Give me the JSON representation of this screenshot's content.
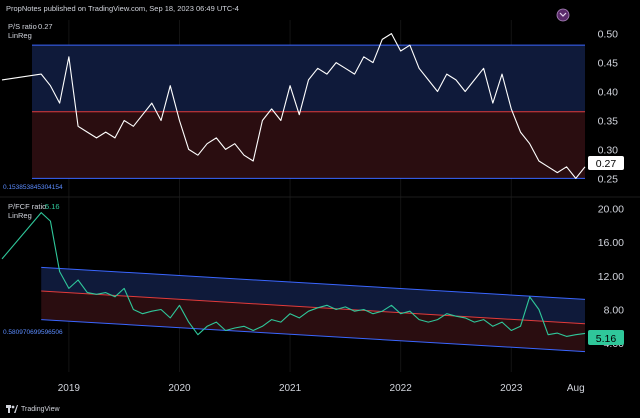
{
  "header": {
    "published": "PropNotes published on TradingView.com, Sep 18, 2023 06:49 UTC-4"
  },
  "footer": {
    "logo_text": "TradingView"
  },
  "colors": {
    "background": "#000000",
    "upper_band": "#0f1a3a",
    "lower_band": "#2a0d10",
    "band_edge_blue": "#3a66ff",
    "band_mid_red": "#e23b3b",
    "line": "#ffffff",
    "pfcf_line": "#2fc79a",
    "grid": "#141414"
  },
  "panes": {
    "ps": {
      "title": "P/S ratio",
      "value": "0.27",
      "indicator": "LinReg",
      "regression_label": "0.153853845304154",
      "last_value_badge": "0.27",
      "yticks": [
        "0.50",
        "0.45",
        "0.40",
        "0.35",
        "0.30",
        "0.25"
      ]
    },
    "pfcf": {
      "title": "P/FCF ratio",
      "value": "5.16",
      "indicator": "LinReg",
      "regression_label": "0.580970699596506",
      "last_value_badge": "5.16",
      "yticks": [
        "20.00",
        "16.00",
        "12.00",
        "8.00",
        "4.00"
      ]
    }
  },
  "xaxis": {
    "labels": [
      "2019",
      "2020",
      "2021",
      "2022",
      "2023",
      "Aug"
    ]
  },
  "chart_data": [
    {
      "type": "line",
      "title": "P/S ratio",
      "ylim": [
        0.23,
        0.52
      ],
      "x_range": [
        "2018-09",
        "2023-09"
      ],
      "regression_channel": {
        "upper": 0.48,
        "mid": 0.365,
        "lower": 0.25
      },
      "series": [
        {
          "name": "P/S ratio",
          "x": [
            "2018-09",
            "2018-10",
            "2018-11",
            "2018-12",
            "2019-01",
            "2019-02",
            "2019-03",
            "2019-04",
            "2019-05",
            "2019-06",
            "2019-07",
            "2019-08",
            "2019-09",
            "2019-10",
            "2019-11",
            "2019-12",
            "2020-01",
            "2020-02",
            "2020-03",
            "2020-04",
            "2020-05",
            "2020-06",
            "2020-07",
            "2020-08",
            "2020-09",
            "2020-10",
            "2020-11",
            "2020-12",
            "2021-01",
            "2021-02",
            "2021-03",
            "2021-04",
            "2021-05",
            "2021-06",
            "2021-07",
            "2021-08",
            "2021-09",
            "2021-10",
            "2021-11",
            "2021-12",
            "2022-01",
            "2022-02",
            "2022-03",
            "2022-04",
            "2022-05",
            "2022-06",
            "2022-07",
            "2022-08",
            "2022-09",
            "2022-10",
            "2022-11",
            "2022-12",
            "2023-01",
            "2023-02",
            "2023-03",
            "2023-04",
            "2023-05",
            "2023-06",
            "2023-07",
            "2023-08",
            "2023-09"
          ],
          "values": [
            0.42,
            0.43,
            0.41,
            0.38,
            0.46,
            0.34,
            0.33,
            0.32,
            0.33,
            0.32,
            0.35,
            0.34,
            0.36,
            0.38,
            0.35,
            0.41,
            0.35,
            0.3,
            0.29,
            0.31,
            0.32,
            0.3,
            0.31,
            0.29,
            0.28,
            0.35,
            0.37,
            0.35,
            0.41,
            0.36,
            0.42,
            0.44,
            0.43,
            0.45,
            0.44,
            0.43,
            0.46,
            0.45,
            0.49,
            0.5,
            0.47,
            0.48,
            0.44,
            0.42,
            0.4,
            0.43,
            0.42,
            0.4,
            0.42,
            0.44,
            0.38,
            0.43,
            0.37,
            0.33,
            0.31,
            0.28,
            0.27,
            0.26,
            0.27,
            0.25,
            0.27
          ]
        }
      ]
    },
    {
      "type": "line",
      "title": "P/FCF ratio",
      "ylim": [
        2.0,
        21.0
      ],
      "x_range": [
        "2018-09",
        "2023-09"
      ],
      "regression_channel": {
        "upper": [
          [
            "2018-10",
            13.0
          ],
          [
            "2023-09",
            9.2
          ]
        ],
        "mid": [
          [
            "2018-10",
            10.2
          ],
          [
            "2023-09",
            6.3
          ]
        ],
        "lower": [
          [
            "2018-10",
            6.8
          ],
          [
            "2023-09",
            3.0
          ]
        ]
      },
      "series": [
        {
          "name": "P/FCF ratio",
          "x": [
            "2018-09",
            "2018-10",
            "2018-11",
            "2018-12",
            "2019-01",
            "2019-02",
            "2019-03",
            "2019-04",
            "2019-05",
            "2019-06",
            "2019-07",
            "2019-08",
            "2019-09",
            "2019-10",
            "2019-11",
            "2019-12",
            "2020-01",
            "2020-02",
            "2020-03",
            "2020-04",
            "2020-05",
            "2020-06",
            "2020-07",
            "2020-08",
            "2020-09",
            "2020-10",
            "2020-11",
            "2020-12",
            "2021-01",
            "2021-02",
            "2021-03",
            "2021-04",
            "2021-05",
            "2021-06",
            "2021-07",
            "2021-08",
            "2021-09",
            "2021-10",
            "2021-11",
            "2021-12",
            "2022-01",
            "2022-02",
            "2022-03",
            "2022-04",
            "2022-05",
            "2022-06",
            "2022-07",
            "2022-08",
            "2022-09",
            "2022-10",
            "2022-11",
            "2022-12",
            "2023-01",
            "2023-02",
            "2023-03",
            "2023-04",
            "2023-05",
            "2023-06",
            "2023-07",
            "2023-08",
            "2023-09"
          ],
          "values": [
            14.0,
            19.5,
            18.5,
            12.5,
            10.5,
            11.5,
            10.0,
            9.8,
            10.0,
            9.5,
            10.5,
            8.0,
            7.5,
            7.8,
            8.0,
            7.0,
            8.5,
            6.5,
            5.0,
            6.0,
            6.5,
            5.5,
            5.8,
            6.0,
            5.5,
            6.0,
            6.8,
            6.5,
            7.5,
            7.0,
            7.8,
            8.2,
            8.5,
            8.0,
            8.3,
            7.8,
            8.0,
            7.5,
            7.8,
            8.5,
            7.5,
            7.8,
            6.8,
            6.5,
            6.8,
            7.5,
            7.2,
            7.0,
            6.5,
            6.8,
            6.0,
            6.5,
            5.5,
            6.0,
            9.5,
            8.0,
            5.0,
            5.2,
            4.8,
            5.0,
            5.16
          ]
        }
      ]
    }
  ]
}
